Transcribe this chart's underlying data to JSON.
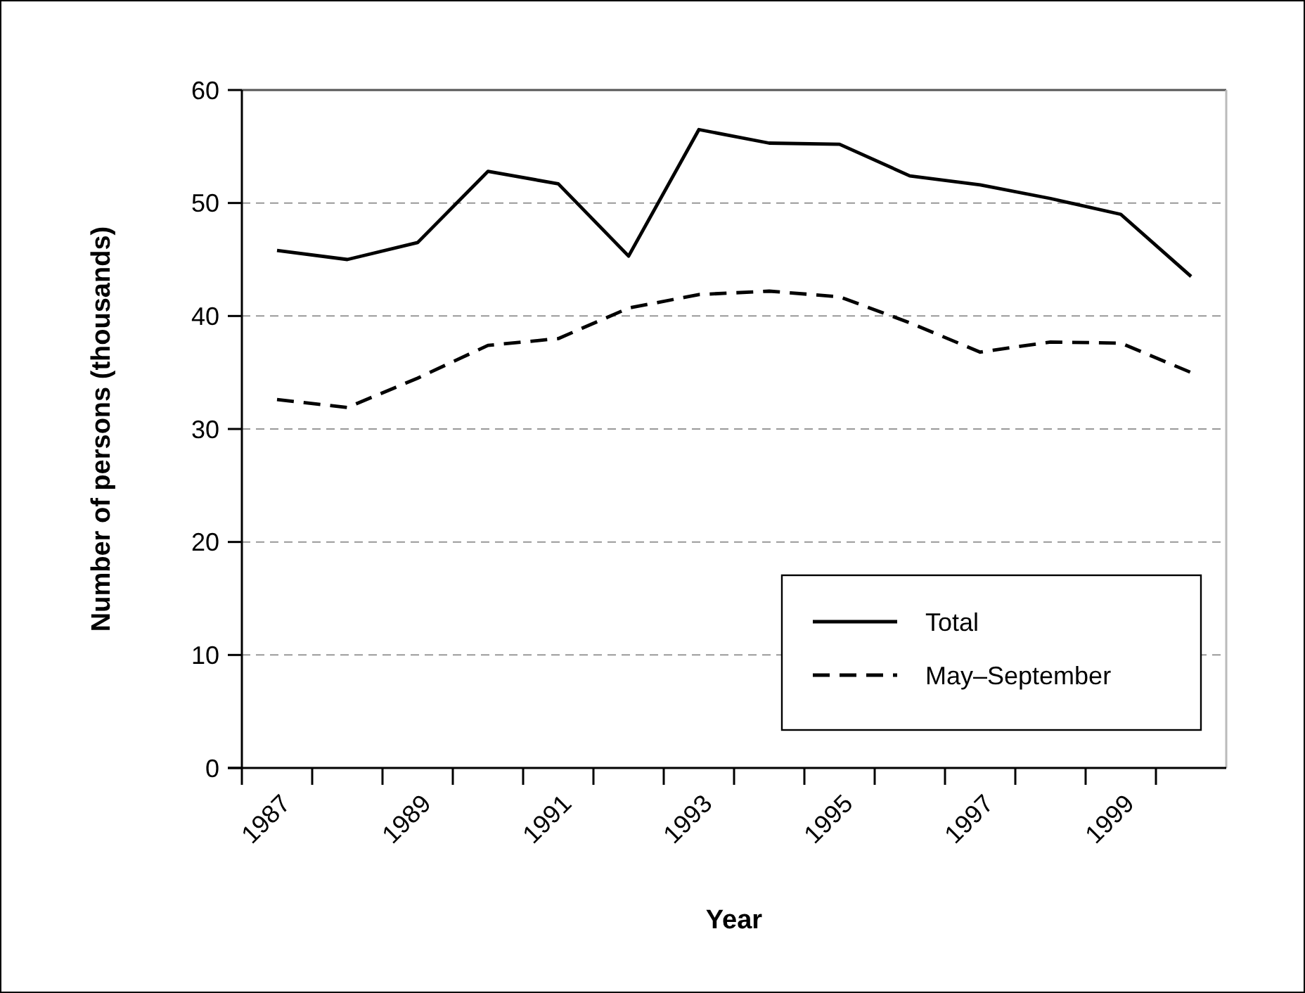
{
  "chart_data": {
    "type": "line",
    "xlabel": "Year",
    "ylabel": "Number of persons (thousands)",
    "categories": [
      "1987",
      null,
      "1989",
      null,
      "1991",
      null,
      "1993",
      null,
      "1995",
      null,
      "1997",
      null,
      "1999",
      null
    ],
    "series": [
      {
        "name": "Total",
        "color": "#000000",
        "line_style": "solid",
        "values": [
          45.8,
          45.0,
          46.5,
          52.8,
          51.7,
          45.3,
          56.5,
          55.3,
          55.2,
          52.4,
          51.6,
          50.4,
          49.0,
          43.5
        ]
      },
      {
        "name": "May–September",
        "color": "#000000",
        "line_style": "dashed",
        "values": [
          32.6,
          31.9,
          34.5,
          37.4,
          38.0,
          40.7,
          41.9,
          42.2,
          41.7,
          39.4,
          36.8,
          37.7,
          37.6,
          35.0
        ]
      }
    ],
    "ylim": [
      0,
      60
    ],
    "yticks": [
      0,
      10,
      20,
      30,
      40,
      50,
      60
    ],
    "grid": "y",
    "legend": "bottom right",
    "marker": "none"
  }
}
